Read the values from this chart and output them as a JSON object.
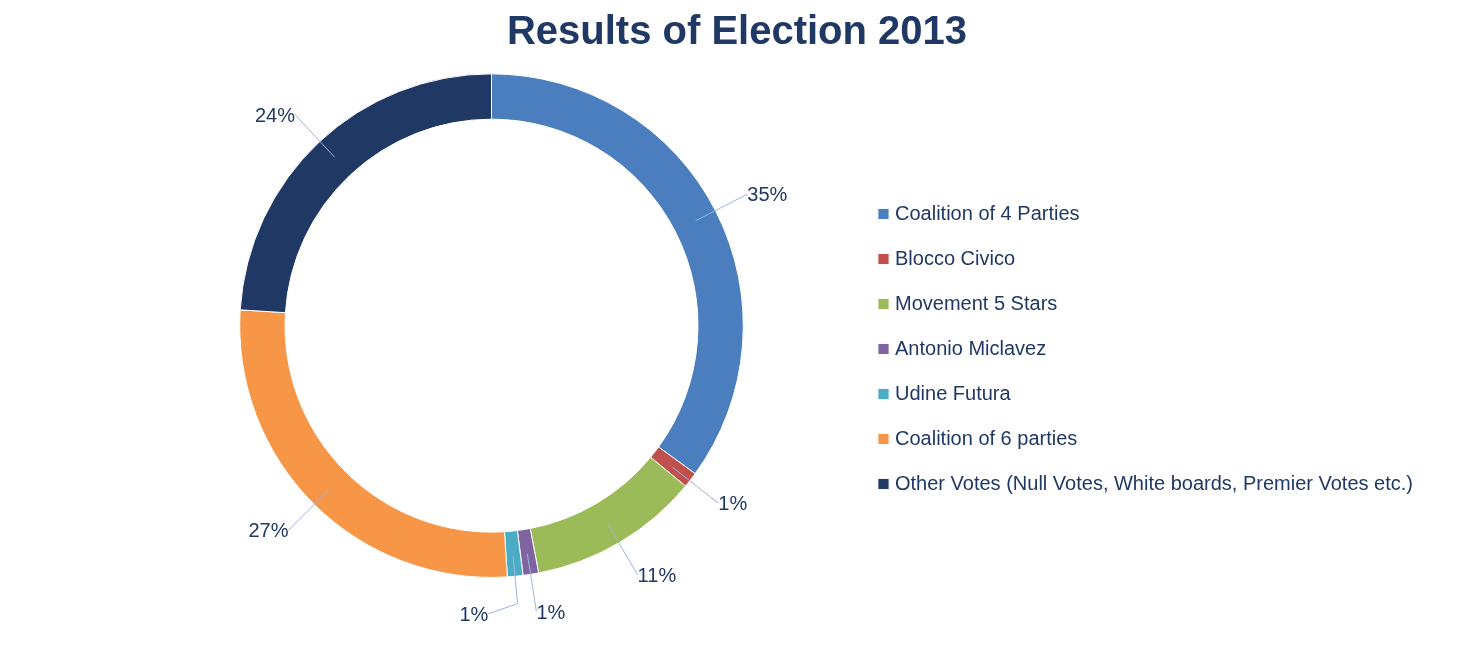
{
  "chart_data": {
    "type": "donut",
    "title": "Results of Election 2013",
    "categories": [
      "Coalition of 4 Parties",
      "Blocco Civico",
      "Movement 5 Stars",
      "Antonio Miclavez",
      "Udine Futura",
      "Coalition of 6 parties",
      "Other Votes (Null Votes, White boards, Premier Votes etc.)"
    ],
    "values": [
      35,
      1,
      11,
      1,
      1,
      27,
      24
    ],
    "value_labels": [
      "35%",
      "1%",
      "11%",
      "1%",
      "1%",
      "27%",
      "24%"
    ],
    "colors": [
      "#4a7ebf",
      "#c0504d",
      "#9bbb59",
      "#8064a2",
      "#4bacc6",
      "#f79646",
      "#1f3864"
    ],
    "legend": "right"
  }
}
